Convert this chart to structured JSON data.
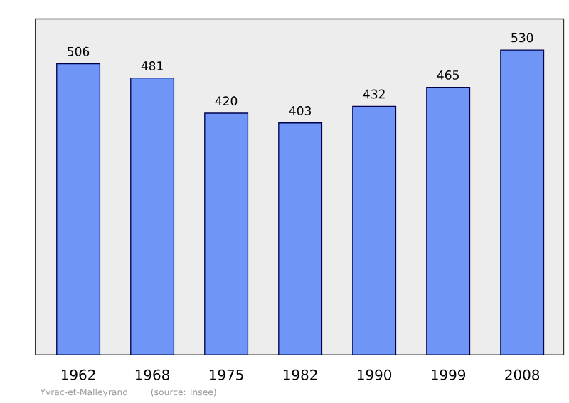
{
  "chart_data": {
    "type": "bar",
    "categories": [
      "1962",
      "1968",
      "1975",
      "1982",
      "1990",
      "1999",
      "2008"
    ],
    "values": [
      506,
      481,
      420,
      403,
      432,
      465,
      530
    ],
    "color": "#6f96f7",
    "ylim": [
      0,
      584
    ],
    "data_labels": true,
    "annotations": [
      "Yvrac-et-Malleyrand",
      "(source: Insee)"
    ]
  }
}
